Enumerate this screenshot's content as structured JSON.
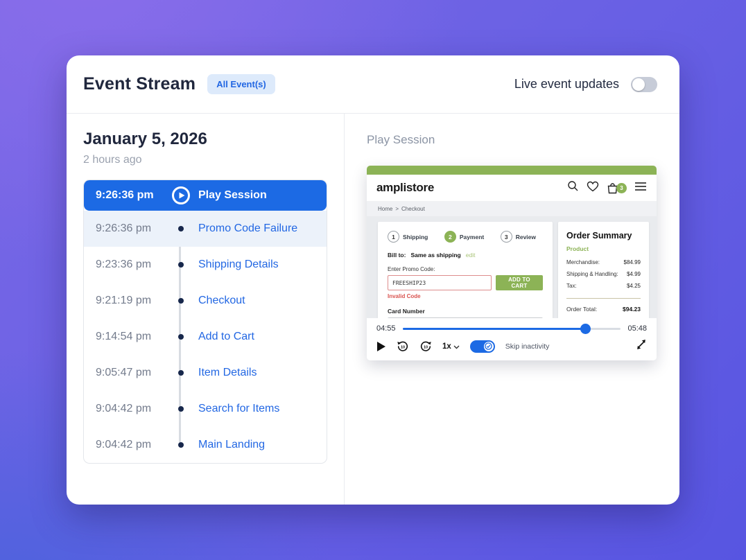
{
  "header": {
    "title": "Event Stream",
    "filter_badge": "All Event(s)",
    "live_toggle_label": "Live event updates",
    "live_toggle_on": false
  },
  "stream": {
    "date": "January 5, 2026",
    "relative_time": "2 hours ago",
    "selected": {
      "time": "9:26:36 pm",
      "label": "Play Session"
    },
    "events": [
      {
        "time": "9:26:36 pm",
        "label": "Promo Code Failure",
        "highlighted": true
      },
      {
        "time": "9:23:36 pm",
        "label": "Shipping Details",
        "highlighted": false
      },
      {
        "time": "9:21:19 pm",
        "label": "Checkout",
        "highlighted": false
      },
      {
        "time": "9:14:54 pm",
        "label": "Add to Cart",
        "highlighted": false
      },
      {
        "time": "9:05:47 pm",
        "label": "Item Details",
        "highlighted": false
      },
      {
        "time": "9:04:42 pm",
        "label": "Search for Items",
        "highlighted": false
      },
      {
        "time": "9:04:42 pm",
        "label": "Main Landing",
        "highlighted": false
      }
    ]
  },
  "player": {
    "title": "Play Session",
    "store": {
      "logo": "amplistore",
      "cart_count": "3",
      "breadcrumb": {
        "home": "Home",
        "separator": ">",
        "current": "Checkout"
      },
      "steps": [
        {
          "num": "1",
          "label": "Shipping",
          "active": false
        },
        {
          "num": "2",
          "label": "Payment",
          "active": true
        },
        {
          "num": "3",
          "label": "Review",
          "active": false
        }
      ],
      "bill_to_label": "Bill to:",
      "bill_to_value": "Same as shipping",
      "edit_link": "edit",
      "promo_label": "Enter Promo Code:",
      "promo_value": "FREESHIP23",
      "add_to_cart_label": "ADD TO CART",
      "invalid_code": "Invalid Code",
      "card_number_label": "Card Number",
      "order_summary": {
        "title": "Order Summary",
        "product_label": "Product",
        "rows": [
          {
            "label": "Merchandise:",
            "value": "$84.99"
          },
          {
            "label": "Shipping & Handling:",
            "value": "$4.99"
          },
          {
            "label": "Tax:",
            "value": "$4.25"
          }
        ],
        "total_label": "Order Total:",
        "total_value": "$94.23"
      }
    },
    "controls": {
      "current_time": "04:55",
      "total_time": "05:48",
      "progress_pct": 84,
      "speed_label": "1x",
      "skip_label": "Skip inactivity",
      "skip_on": true
    }
  },
  "colors": {
    "accent_blue": "#1c6ae4",
    "store_green": "#8cb356",
    "error_red": "#d9534f",
    "timeline_dot": "#17274b",
    "background_gradient": [
      "#7a68e6",
      "#6a61e4",
      "#4862dc"
    ]
  },
  "icons": {
    "play-session-icon": "play-in-circle",
    "search-icon": "magnifier",
    "wishlist-icon": "heart-outline",
    "cart-icon": "shopping-bag",
    "menu-icon": "hamburger",
    "play-icon": "solid-triangle",
    "rewind-10-icon": "counterclockwise-arrow-10",
    "forward-10-icon": "clockwise-arrow-10",
    "chevron-down-icon": "chevron-down",
    "check-icon": "checkmark-circle",
    "fullscreen-icon": "diagonal-expand-arrows"
  }
}
